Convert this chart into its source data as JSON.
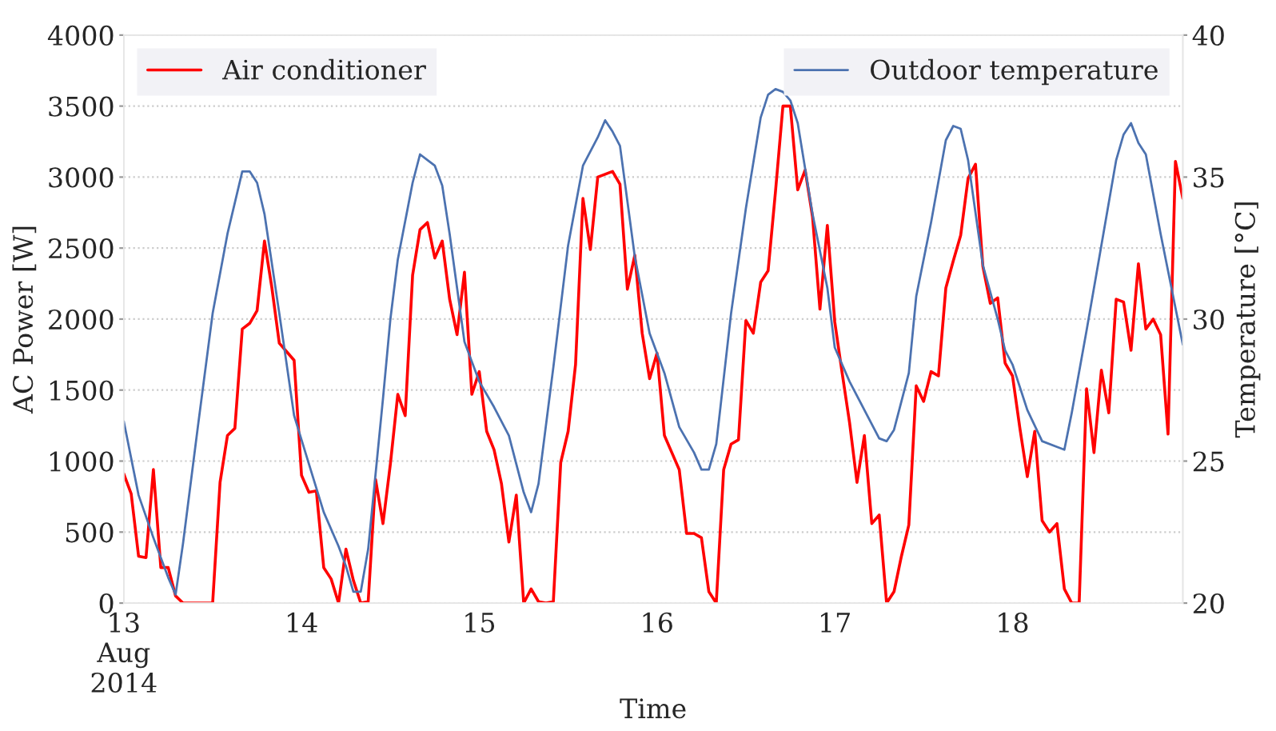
{
  "chart_data": {
    "type": "line",
    "xlabel": "Time",
    "ylabel": "AC Power [W]",
    "y2label": "Temperature [°C]",
    "xlim": [
      "2014-08-13T00:00",
      "2014-08-18T23:00"
    ],
    "xticks": [
      {
        "value": "2014-08-13",
        "label": "13\nAug\n2014"
      },
      {
        "value": "2014-08-14",
        "label": "14"
      },
      {
        "value": "2014-08-15",
        "label": "15"
      },
      {
        "value": "2014-08-16",
        "label": "16"
      },
      {
        "value": "2014-08-17",
        "label": "17"
      },
      {
        "value": "2014-08-18",
        "label": "18"
      }
    ],
    "ylim": [
      0,
      4000
    ],
    "yticks": [
      0,
      500,
      1000,
      1500,
      2000,
      2500,
      3000,
      3500,
      4000
    ],
    "y2lim": [
      20,
      40
    ],
    "y2ticks": [
      20,
      25,
      30,
      35,
      40
    ],
    "grid": "y",
    "legend": "top",
    "line_style": "solid",
    "series": [
      {
        "name": "Air conditioner",
        "color": "#ff0000",
        "axis": "y",
        "x": [
          "2014-08-13T00:00",
          "2014-08-13T01:00",
          "2014-08-13T02:00",
          "2014-08-13T03:00",
          "2014-08-13T04:00",
          "2014-08-13T05:00",
          "2014-08-13T06:00",
          "2014-08-13T07:00",
          "2014-08-13T08:00",
          "2014-08-13T09:00",
          "2014-08-13T10:00",
          "2014-08-13T11:00",
          "2014-08-13T12:00",
          "2014-08-13T13:00",
          "2014-08-13T14:00",
          "2014-08-13T15:00",
          "2014-08-13T16:00",
          "2014-08-13T17:00",
          "2014-08-13T18:00",
          "2014-08-13T19:00",
          "2014-08-13T20:00",
          "2014-08-13T21:00",
          "2014-08-13T22:00",
          "2014-08-13T23:00",
          "2014-08-14T00:00",
          "2014-08-14T01:00",
          "2014-08-14T02:00",
          "2014-08-14T03:00",
          "2014-08-14T04:00",
          "2014-08-14T05:00",
          "2014-08-14T06:00",
          "2014-08-14T07:00",
          "2014-08-14T08:00",
          "2014-08-14T09:00",
          "2014-08-14T10:00",
          "2014-08-14T11:00",
          "2014-08-14T12:00",
          "2014-08-14T13:00",
          "2014-08-14T14:00",
          "2014-08-14T15:00",
          "2014-08-14T16:00",
          "2014-08-14T17:00",
          "2014-08-14T18:00",
          "2014-08-14T19:00",
          "2014-08-14T20:00",
          "2014-08-14T21:00",
          "2014-08-14T22:00",
          "2014-08-14T23:00",
          "2014-08-15T00:00",
          "2014-08-15T01:00",
          "2014-08-15T02:00",
          "2014-08-15T03:00",
          "2014-08-15T04:00",
          "2014-08-15T05:00",
          "2014-08-15T06:00",
          "2014-08-15T07:00",
          "2014-08-15T08:00",
          "2014-08-15T09:00",
          "2014-08-15T10:00",
          "2014-08-15T11:00",
          "2014-08-15T12:00",
          "2014-08-15T13:00",
          "2014-08-15T14:00",
          "2014-08-15T15:00",
          "2014-08-15T16:00",
          "2014-08-15T17:00",
          "2014-08-15T18:00",
          "2014-08-15T19:00",
          "2014-08-15T20:00",
          "2014-08-15T21:00",
          "2014-08-15T22:00",
          "2014-08-15T23:00",
          "2014-08-16T00:00",
          "2014-08-16T01:00",
          "2014-08-16T02:00",
          "2014-08-16T03:00",
          "2014-08-16T04:00",
          "2014-08-16T05:00",
          "2014-08-16T06:00",
          "2014-08-16T07:00",
          "2014-08-16T08:00",
          "2014-08-16T09:00",
          "2014-08-16T10:00",
          "2014-08-16T11:00",
          "2014-08-16T12:00",
          "2014-08-16T13:00",
          "2014-08-16T14:00",
          "2014-08-16T15:00",
          "2014-08-16T16:00",
          "2014-08-16T17:00",
          "2014-08-16T18:00",
          "2014-08-16T19:00",
          "2014-08-16T20:00",
          "2014-08-16T21:00",
          "2014-08-16T22:00",
          "2014-08-16T23:00",
          "2014-08-17T00:00",
          "2014-08-17T01:00",
          "2014-08-17T02:00",
          "2014-08-17T03:00",
          "2014-08-17T04:00",
          "2014-08-17T05:00",
          "2014-08-17T06:00",
          "2014-08-17T07:00",
          "2014-08-17T08:00",
          "2014-08-17T09:00",
          "2014-08-17T10:00",
          "2014-08-17T11:00",
          "2014-08-17T12:00",
          "2014-08-17T13:00",
          "2014-08-17T14:00",
          "2014-08-17T15:00",
          "2014-08-17T16:00",
          "2014-08-17T17:00",
          "2014-08-17T18:00",
          "2014-08-17T19:00",
          "2014-08-17T20:00",
          "2014-08-17T21:00",
          "2014-08-17T22:00",
          "2014-08-17T23:00",
          "2014-08-18T00:00",
          "2014-08-18T01:00",
          "2014-08-18T02:00",
          "2014-08-18T03:00",
          "2014-08-18T04:00",
          "2014-08-18T05:00",
          "2014-08-18T06:00",
          "2014-08-18T07:00",
          "2014-08-18T08:00",
          "2014-08-18T09:00",
          "2014-08-18T10:00",
          "2014-08-18T11:00",
          "2014-08-18T12:00",
          "2014-08-18T13:00",
          "2014-08-18T14:00",
          "2014-08-18T15:00",
          "2014-08-18T16:00",
          "2014-08-18T17:00",
          "2014-08-18T18:00",
          "2014-08-18T19:00",
          "2014-08-18T20:00",
          "2014-08-18T21:00",
          "2014-08-18T22:00",
          "2014-08-18T23:00"
        ],
        "values": [
          910,
          770,
          330,
          320,
          940,
          250,
          250,
          50,
          0,
          0,
          0,
          0,
          0,
          850,
          1180,
          1230,
          1930,
          1970,
          2060,
          2550,
          2220,
          1830,
          1770,
          1710,
          900,
          780,
          790,
          250,
          170,
          0,
          380,
          160,
          0,
          10,
          870,
          560,
          980,
          1470,
          1320,
          2310,
          2630,
          2680,
          2430,
          2550,
          2140,
          1890,
          2330,
          1470,
          1630,
          1210,
          1080,
          840,
          430,
          760,
          0,
          100,
          10,
          0,
          10,
          990,
          1210,
          1680,
          2850,
          2490,
          3000,
          3020,
          3040,
          2950,
          2210,
          2450,
          1900,
          1580,
          1760,
          1180,
          1060,
          940,
          490,
          490,
          460,
          80,
          0,
          940,
          1120,
          1150,
          1990,
          1900,
          2260,
          2340,
          2900,
          3500,
          3500,
          2910,
          3050,
          2720,
          2070,
          2660,
          1980,
          1620,
          1270,
          850,
          1180,
          560,
          620,
          0,
          80,
          330,
          550,
          1530,
          1420,
          1630,
          1600,
          2220,
          2410,
          2590,
          2990,
          3090,
          2370,
          2110,
          2150,
          1690,
          1600,
          1230,
          890,
          1210,
          580,
          500,
          560,
          100,
          0,
          0,
          1510,
          1060,
          1640,
          1340,
          2140,
          2120,
          1780,
          2390,
          1930,
          2000,
          1890,
          1190,
          3110,
          2850
        ]
      },
      {
        "name": "Outdoor temperature",
        "color": "#4c72b0",
        "axis": "y2",
        "x": [
          "2014-08-13T00:00",
          "2014-08-13T02:00",
          "2014-08-13T04:00",
          "2014-08-13T06:00",
          "2014-08-13T07:00",
          "2014-08-13T08:00",
          "2014-08-13T10:00",
          "2014-08-13T12:00",
          "2014-08-13T14:00",
          "2014-08-13T16:00",
          "2014-08-13T17:00",
          "2014-08-13T18:00",
          "2014-08-13T19:00",
          "2014-08-13T21:00",
          "2014-08-13T23:00",
          "2014-08-14T01:00",
          "2014-08-14T03:00",
          "2014-08-14T05:00",
          "2014-08-14T06:00",
          "2014-08-14T07:00",
          "2014-08-14T08:00",
          "2014-08-14T09:00",
          "2014-08-14T11:00",
          "2014-08-14T12:00",
          "2014-08-14T13:00",
          "2014-08-14T15:00",
          "2014-08-14T16:00",
          "2014-08-14T17:00",
          "2014-08-14T18:00",
          "2014-08-14T19:00",
          "2014-08-14T20:00",
          "2014-08-14T22:00",
          "2014-08-15T00:00",
          "2014-08-15T02:00",
          "2014-08-15T04:00",
          "2014-08-15T06:00",
          "2014-08-15T07:00",
          "2014-08-15T08:00",
          "2014-08-15T10:00",
          "2014-08-15T12:00",
          "2014-08-15T14:00",
          "2014-08-15T16:00",
          "2014-08-15T17:00",
          "2014-08-15T18:00",
          "2014-08-15T19:00",
          "2014-08-15T21:00",
          "2014-08-15T23:00",
          "2014-08-16T01:00",
          "2014-08-16T03:00",
          "2014-08-16T05:00",
          "2014-08-16T06:00",
          "2014-08-16T07:00",
          "2014-08-16T08:00",
          "2014-08-16T10:00",
          "2014-08-16T12:00",
          "2014-08-16T14:00",
          "2014-08-16T15:00",
          "2014-08-16T16:00",
          "2014-08-16T17:00",
          "2014-08-16T18:00",
          "2014-08-16T19:00",
          "2014-08-16T21:00",
          "2014-08-16T23:00",
          "2014-08-17T00:00",
          "2014-08-17T02:00",
          "2014-08-17T04:00",
          "2014-08-17T06:00",
          "2014-08-17T07:00",
          "2014-08-17T08:00",
          "2014-08-17T10:00",
          "2014-08-17T11:00",
          "2014-08-17T13:00",
          "2014-08-17T15:00",
          "2014-08-17T16:00",
          "2014-08-17T17:00",
          "2014-08-17T18:00",
          "2014-08-17T20:00",
          "2014-08-17T22:00",
          "2014-08-17T23:00",
          "2014-08-18T00:00",
          "2014-08-18T02:00",
          "2014-08-18T04:00",
          "2014-08-18T06:00",
          "2014-08-18T07:00",
          "2014-08-18T08:00",
          "2014-08-18T10:00",
          "2014-08-18T12:00",
          "2014-08-18T14:00",
          "2014-08-18T15:00",
          "2014-08-18T16:00",
          "2014-08-18T17:00",
          "2014-08-18T18:00",
          "2014-08-18T20:00",
          "2014-08-18T22:00",
          "2014-08-18T23:00"
        ],
        "values": [
          26.4,
          23.8,
          22.3,
          20.9,
          20.3,
          22.1,
          26.2,
          30.2,
          33.0,
          35.2,
          35.2,
          34.8,
          33.7,
          30.2,
          26.6,
          24.9,
          23.2,
          22.0,
          21.3,
          20.4,
          20.4,
          21.9,
          27.2,
          30.0,
          32.1,
          34.8,
          35.8,
          35.6,
          35.4,
          34.7,
          33.0,
          29.2,
          27.8,
          26.9,
          25.9,
          23.9,
          23.2,
          24.2,
          28.3,
          32.6,
          35.4,
          36.4,
          37.0,
          36.6,
          36.1,
          32.2,
          29.5,
          28.1,
          26.2,
          25.3,
          24.7,
          24.7,
          25.6,
          30.2,
          33.9,
          37.1,
          37.9,
          38.1,
          38.0,
          37.7,
          36.9,
          33.7,
          31.1,
          29.0,
          27.8,
          26.8,
          25.8,
          25.7,
          26.1,
          28.1,
          30.8,
          33.4,
          36.3,
          36.8,
          36.7,
          35.6,
          31.9,
          30.0,
          28.9,
          28.4,
          26.8,
          25.7,
          25.5,
          25.4,
          26.7,
          29.6,
          32.6,
          35.6,
          36.5,
          36.9,
          36.2,
          35.8,
          33.0,
          30.4,
          29.1
        ]
      }
    ]
  }
}
